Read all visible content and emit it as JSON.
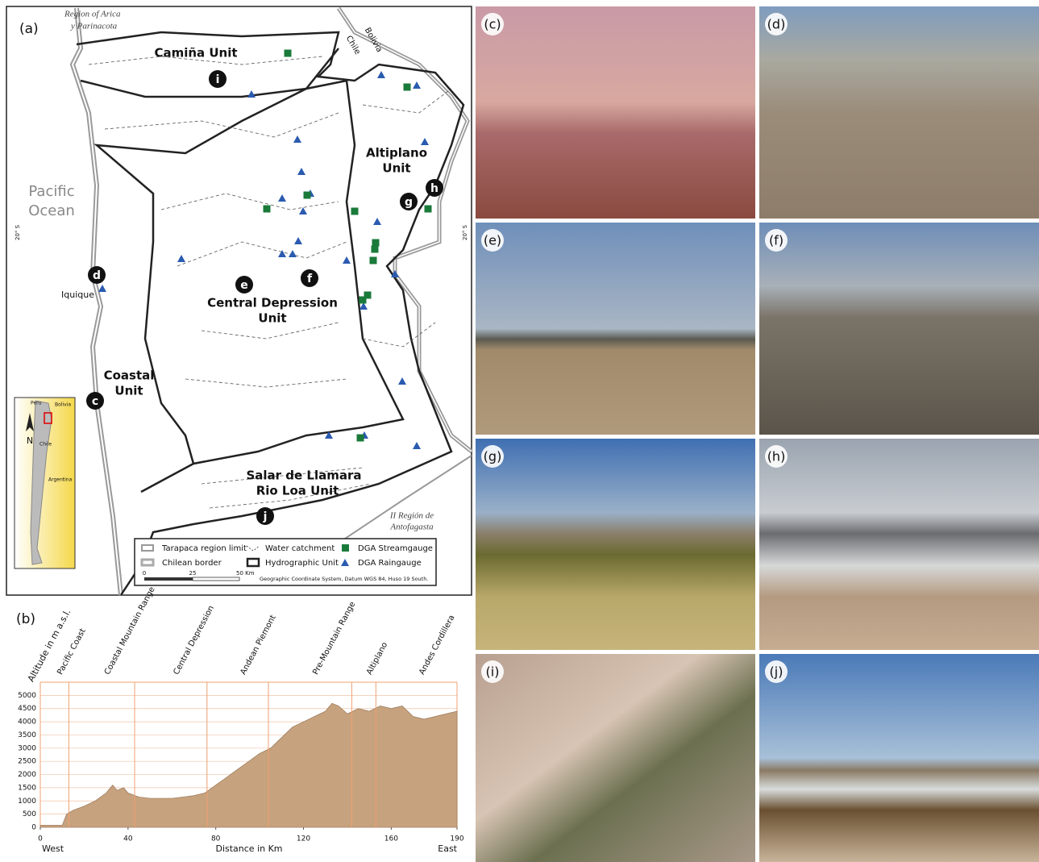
{
  "map": {
    "panel": "(a)",
    "region": [
      "Region of Arica",
      "y Parinacota"
    ],
    "countries": [
      "Bolivia",
      "Chile"
    ],
    "ocean": [
      "Pacific",
      "Ocean"
    ],
    "latitude": [
      "20° S",
      "20° S"
    ],
    "units": {
      "camina": "Camiña Unit",
      "altiplano": [
        "Altiplano",
        "Unit"
      ],
      "central": [
        "Central Depression",
        "Unit"
      ],
      "coastal": [
        "Coastal",
        "Unit"
      ],
      "salar": [
        "Salar de Llamara",
        "Rio Loa Unit"
      ]
    },
    "city": "Iquique",
    "antofagasta": [
      "II Región de",
      "Antofagasta"
    ],
    "sites": [
      "i",
      "e",
      "f",
      "d",
      "c",
      "g",
      "h",
      "j"
    ],
    "inset": [
      "Peru",
      "Bolivia",
      "N",
      "Chile",
      "Argentina"
    ],
    "legend": [
      "Tarapaca region limit",
      "Water catchment",
      "DGA Streamgauge",
      "Chilean border",
      "Hydrographic Unit",
      "DGA Raingauge"
    ],
    "scale": [
      "0",
      "25",
      "50 Km"
    ],
    "datum": "Geographic Coordinate System, Datum WGS 84, Huso 19 South."
  },
  "profile": {
    "panel": "(b)",
    "type": "area",
    "y_label": "Altitude in m a.s.l.",
    "x_label": "Distance in Km",
    "x_left": "West",
    "x_right": "East",
    "zones": [
      "Pacific Coast",
      "Coastal Mountain Range",
      "Central Depression",
      "Andean Piemont",
      "Pre-Mountain Range",
      "Altiplano",
      "Andes Cordillera"
    ],
    "zone_lines": [
      13,
      43,
      76,
      104,
      142,
      153
    ],
    "xlim": [
      0,
      190
    ],
    "ylim": [
      0,
      5500
    ],
    "xticks": [
      0,
      40,
      80,
      120,
      160,
      190
    ],
    "yticks": [
      0,
      500,
      1000,
      1500,
      2000,
      2500,
      3000,
      3500,
      4000,
      4500,
      5000
    ],
    "x": [
      0,
      5,
      10,
      12,
      15,
      20,
      25,
      30,
      33,
      35,
      38,
      40,
      45,
      50,
      55,
      60,
      65,
      70,
      75,
      80,
      85,
      90,
      95,
      100,
      105,
      110,
      115,
      120,
      125,
      130,
      133,
      136,
      140,
      145,
      150,
      155,
      160,
      165,
      170,
      175,
      180,
      185,
      190
    ],
    "values": [
      80,
      80,
      80,
      500,
      650,
      800,
      1000,
      1300,
      1600,
      1400,
      1500,
      1300,
      1150,
      1100,
      1100,
      1100,
      1150,
      1200,
      1300,
      1600,
      1900,
      2200,
      2500,
      2800,
      3000,
      3400,
      3800,
      4000,
      4200,
      4400,
      4700,
      4600,
      4300,
      4500,
      4400,
      4600,
      4500,
      4600,
      4200,
      4100,
      4200,
      4300,
      4400
    ]
  },
  "photos": [
    "(c)",
    "(d)",
    "(e)",
    "(f)",
    "(g)",
    "(h)",
    "(i)",
    "(j)"
  ]
}
